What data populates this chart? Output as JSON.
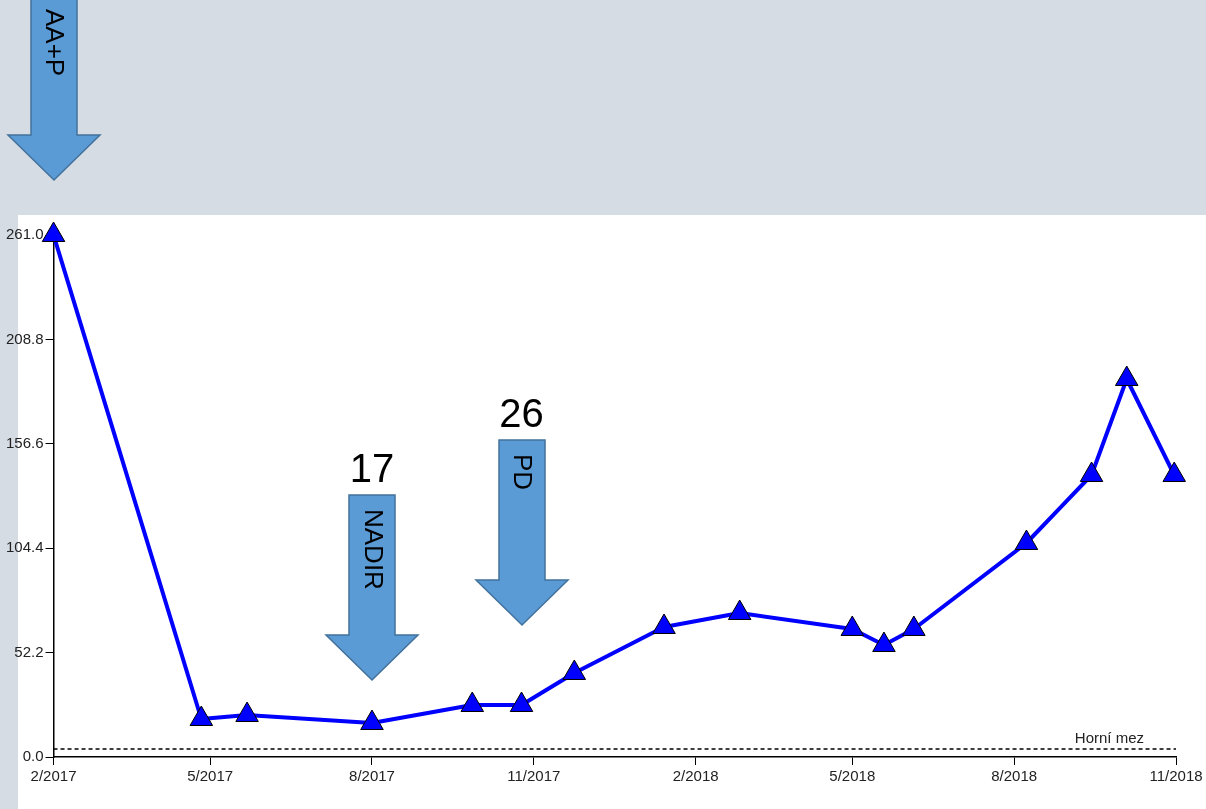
{
  "chart_data": {
    "type": "line",
    "x": [
      "2017-02-01",
      "2017-04-26",
      "2017-05-22",
      "2017-08-01",
      "2017-09-27",
      "2017-10-25",
      "2017-11-24",
      "2018-01-14",
      "2018-02-26",
      "2018-05-01",
      "2018-05-19",
      "2018-06-05",
      "2018-08-08",
      "2018-09-14",
      "2018-10-04",
      "2018-10-31"
    ],
    "series": [
      {
        "color": "#0000ff",
        "values": [
          261,
          19,
          21,
          17,
          26,
          26,
          42,
          65,
          72,
          64,
          56,
          64,
          107,
          141,
          189,
          141
        ]
      }
    ],
    "xlim": [
      "2017-02",
      "2018-11"
    ],
    "xticks": [
      {
        "value": "2017-02",
        "label": "2/2017"
      },
      {
        "value": "2017-05",
        "label": "5/2017"
      },
      {
        "value": "2017-08",
        "label": "8/2017"
      },
      {
        "value": "2017-11",
        "label": "11/2017"
      },
      {
        "value": "2018-02",
        "label": "2/2018"
      },
      {
        "value": "2018-05",
        "label": "5/2018"
      },
      {
        "value": "2018-08",
        "label": "8/2018"
      },
      {
        "value": "2018-11",
        "label": "11/2018"
      }
    ],
    "ylim": [
      0,
      261
    ],
    "yticks": [
      {
        "value": 0,
        "label": "0.0"
      },
      {
        "value": 52.2,
        "label": "52.2"
      },
      {
        "value": 104.4,
        "label": "104.4"
      },
      {
        "value": 156.6,
        "label": "156.6"
      },
      {
        "value": 208.8,
        "label": "208.8"
      },
      {
        "value": 261,
        "label": "261.0"
      }
    ],
    "ref_lines": [
      {
        "axis": "y",
        "value": 4,
        "label": "Horní mez",
        "line_style": "dashed",
        "color": "#000000"
      }
    ],
    "annotations": [
      "AA+P",
      "NADIR",
      "17",
      "PD",
      "26"
    ],
    "grid": false,
    "legend": false,
    "marker": "triangle",
    "line_style": "solid"
  }
}
